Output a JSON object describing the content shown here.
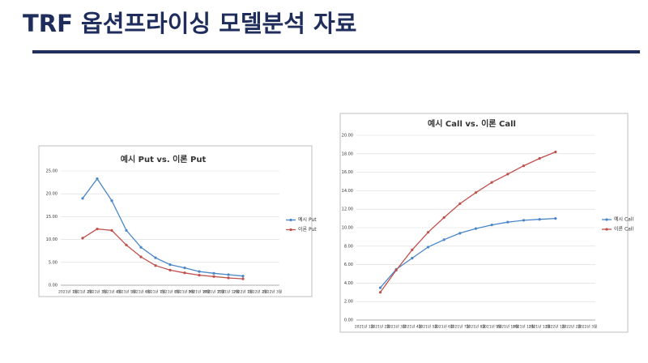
{
  "title": "TRF 옵션프라이싱 모델분석 자료",
  "chart_data": [
    {
      "type": "line",
      "title": "예시 Put vs. 이론 Put",
      "categories": [
        "2021년 1월",
        "2021년 2월",
        "2021년 3월",
        "2021년 4월",
        "2021년 5월",
        "2021년 6월",
        "2021년 7월",
        "2021년 8월",
        "2021년 9월",
        "2021년 10월",
        "2021년 11월",
        "2021년 12월",
        "2022년 1월",
        "2022년 2월",
        "2022년 3월"
      ],
      "series": [
        {
          "name": "예시 Put",
          "color": "#4a86c8",
          "values": [
            null,
            19,
            23.3,
            18.5,
            12,
            8.3,
            6,
            4.5,
            3.8,
            3,
            2.6,
            2.3,
            2,
            null,
            null
          ]
        },
        {
          "name": "이론 Put",
          "color": "#c0504d",
          "values": [
            null,
            10.3,
            12.3,
            12,
            8.8,
            6.2,
            4.3,
            3.3,
            2.7,
            2.2,
            1.9,
            1.6,
            1.4,
            null,
            null
          ]
        }
      ],
      "ylim": [
        0,
        25
      ],
      "yticks": [
        {
          "value": 0,
          "label": "0.00"
        },
        {
          "value": 5,
          "label": "5.00"
        },
        {
          "value": 10,
          "label": "10.00"
        },
        {
          "value": 15,
          "label": "15.00"
        },
        {
          "value": 20,
          "label": "20.00"
        },
        {
          "value": 25,
          "label": "25.00"
        }
      ],
      "grid": true,
      "legend": "right"
    },
    {
      "type": "line",
      "title": "예시 Call vs. 이론 Call",
      "categories": [
        "2021년 1월",
        "2021년 2월",
        "2021년 3월",
        "2021년 4월",
        "2021년 5월",
        "2021년 6월",
        "2021년 7월",
        "2021년 8월",
        "2021년 9월",
        "2021년 10월",
        "2021년 11월",
        "2021년 12월",
        "2022년 1월",
        "2022년 2월",
        "2022년 3월"
      ],
      "series": [
        {
          "name": "예시 Call",
          "color": "#4a86c8",
          "values": [
            null,
            3.5,
            5.5,
            6.7,
            7.9,
            8.7,
            9.4,
            9.9,
            10.3,
            10.6,
            10.8,
            10.9,
            11.0,
            null,
            null
          ]
        },
        {
          "name": "이론 Call",
          "color": "#c0504d",
          "values": [
            null,
            3.0,
            5.4,
            7.6,
            9.5,
            11.1,
            12.6,
            13.8,
            14.9,
            15.8,
            16.7,
            17.5,
            18.2,
            null,
            null
          ]
        }
      ],
      "ylim": [
        0,
        20
      ],
      "yticks": [
        {
          "value": 0,
          "label": "0.00"
        },
        {
          "value": 2,
          "label": "2.00"
        },
        {
          "value": 4,
          "label": "4.00"
        },
        {
          "value": 6,
          "label": "6.00"
        },
        {
          "value": 8,
          "label": "8.00"
        },
        {
          "value": 10,
          "label": "10.00"
        },
        {
          "value": 12,
          "label": "12.00"
        },
        {
          "value": 14,
          "label": "14.00"
        },
        {
          "value": 16,
          "label": "16.00"
        },
        {
          "value": 18,
          "label": "18.00"
        },
        {
          "value": 20,
          "label": "20.00"
        }
      ],
      "grid": true,
      "legend": "right"
    }
  ]
}
